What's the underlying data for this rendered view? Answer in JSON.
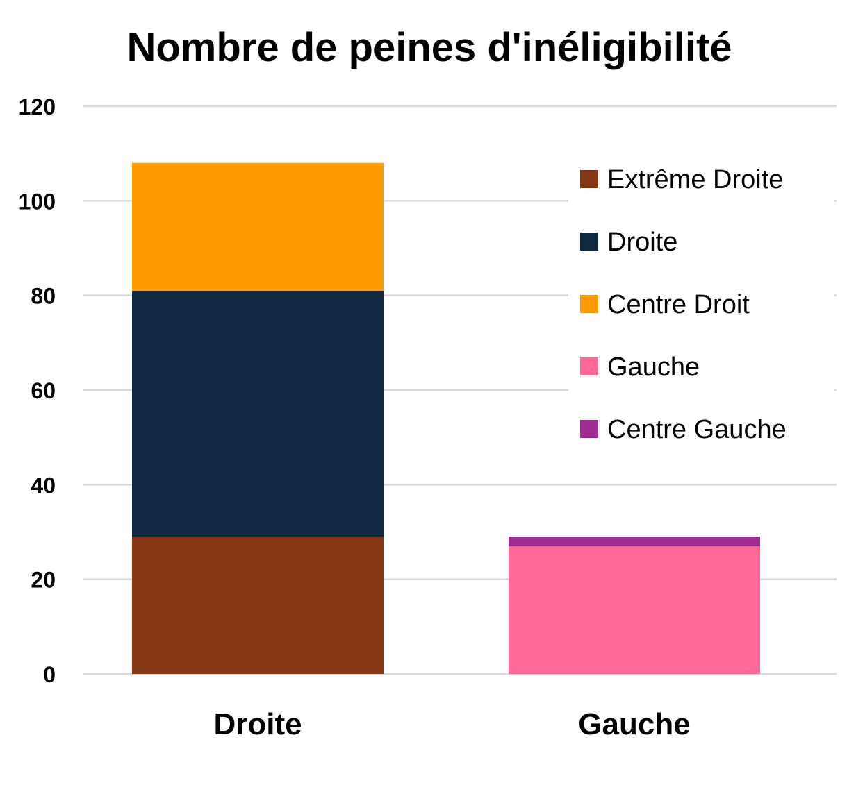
{
  "chart_data": {
    "type": "bar",
    "stacked": true,
    "title": "Nombre de peines d'inéligibilité",
    "xlabel": "",
    "ylabel": "",
    "categories": [
      "Droite",
      "Gauche"
    ],
    "ylim": [
      0,
      120
    ],
    "yticks": [
      "0",
      "20",
      "40",
      "60",
      "80",
      "100",
      "120"
    ],
    "grid": true,
    "legend_position": "top-right",
    "series": [
      {
        "name": "Extrême Droite",
        "color": "#843511",
        "values": [
          29,
          0
        ]
      },
      {
        "name": "Droite",
        "color": "#0f2841",
        "values": [
          52,
          0
        ]
      },
      {
        "name": "Centre Droit",
        "color": "#fb9b00",
        "values": [
          27,
          0
        ]
      },
      {
        "name": "Gauche",
        "color": "#fe6897",
        "values": [
          0,
          27
        ]
      },
      {
        "name": "Centre Gauche",
        "color": "#a02b93",
        "values": [
          0,
          2
        ]
      }
    ]
  }
}
